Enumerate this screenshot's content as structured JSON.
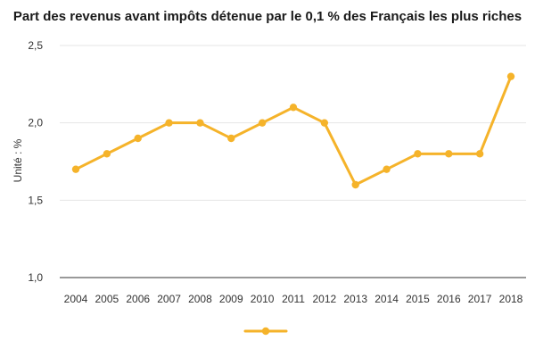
{
  "chart_data": {
    "type": "line",
    "title": "Part des revenus avant impôts détenue par le 0,1 % des Français les plus riches",
    "xlabel": "",
    "ylabel": "Unité : %",
    "x": [
      "2004",
      "2005",
      "2006",
      "2007",
      "2008",
      "2009",
      "2010",
      "2011",
      "2012",
      "2013",
      "2014",
      "2015",
      "2016",
      "2017",
      "2018"
    ],
    "series": [
      {
        "values": [
          1.7,
          1.8,
          1.9,
          2.0,
          2.0,
          1.9,
          2.0,
          2.1,
          2.0,
          1.6,
          1.7,
          1.8,
          1.8,
          1.8,
          2.3
        ]
      }
    ],
    "ylim": [
      1.0,
      2.5
    ],
    "yticks": [
      "1,0",
      "1,5",
      "2,0",
      "2,5"
    ],
    "grid": true,
    "legend": "bottom",
    "colors": {
      "series": "#F5B32A"
    }
  }
}
